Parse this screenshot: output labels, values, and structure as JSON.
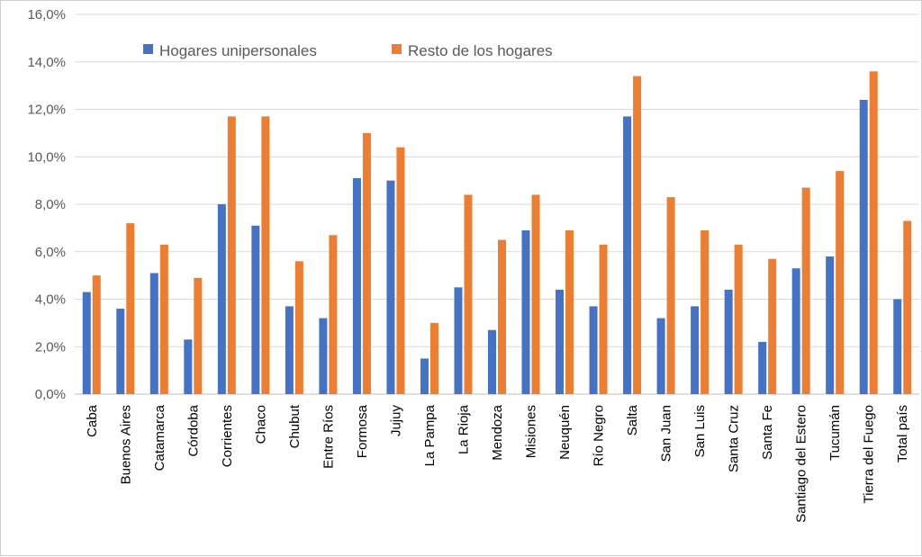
{
  "chart_data": {
    "type": "bar",
    "title": "",
    "xlabel": "",
    "ylabel": "",
    "ylim": [
      0,
      16
    ],
    "y_ticks": [
      "0,0%",
      "2,0%",
      "4,0%",
      "6,0%",
      "8,0%",
      "10,0%",
      "12,0%",
      "14,0%",
      "16,0%"
    ],
    "grid": true,
    "legend_position": "top-left",
    "categories": [
      "Caba",
      "Buenos Aires",
      "Catamarca",
      "Córdoba",
      "Corrientes",
      "Chaco",
      "Chubut",
      "Entre Ríos",
      "Formosa",
      "Jujuy",
      "La Pampa",
      "La Rioja",
      "Mendoza",
      "Misiones",
      "Neuquén",
      "Río Negro",
      "Salta",
      "San Juan",
      "San Luis",
      "Santa Cruz",
      "Santa Fe",
      "Santiago del Estero",
      "Tucumán",
      "Tierra del Fuego",
      "Total país"
    ],
    "series": [
      {
        "name": "Hogares unipersonales",
        "color": "#4472C4",
        "values": [
          4.3,
          3.6,
          5.1,
          2.3,
          8.0,
          7.1,
          3.7,
          3.2,
          9.1,
          9.0,
          1.5,
          4.5,
          2.7,
          6.9,
          4.4,
          3.7,
          11.7,
          3.2,
          3.7,
          4.4,
          2.2,
          5.3,
          5.8,
          12.4,
          4.0
        ]
      },
      {
        "name": "Resto de los hogares",
        "color": "#ED7D31",
        "values": [
          5.0,
          7.2,
          6.3,
          4.9,
          11.7,
          11.7,
          5.6,
          6.7,
          11.0,
          10.4,
          3.0,
          8.4,
          6.5,
          8.4,
          6.9,
          6.3,
          13.4,
          8.3,
          6.9,
          6.3,
          5.7,
          8.7,
          9.4,
          13.6,
          7.3
        ]
      }
    ]
  }
}
